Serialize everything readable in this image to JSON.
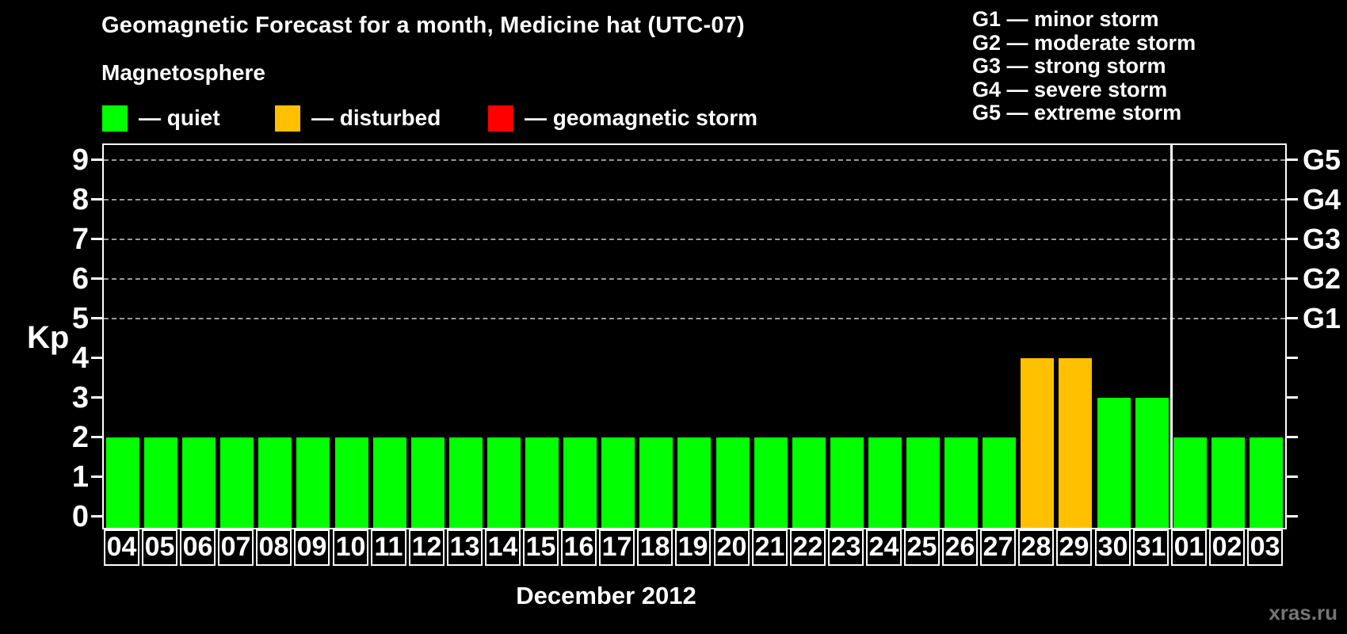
{
  "colors": {
    "quiet": "#00ff00",
    "disturbed": "#ffc000",
    "storm": "#ff0000",
    "grid": "#999999",
    "axis": "#ffffff",
    "background": "#000000",
    "watermark_text": "#757575"
  },
  "legend": {
    "heading": "Magnetosphere",
    "items": [
      {
        "label": "— quiet",
        "color": "#00ff00",
        "key": "quiet"
      },
      {
        "label": "— disturbed",
        "color": "#ffc000",
        "key": "disturbed"
      },
      {
        "label": "— geomagnetic storm",
        "color": "#ff0000",
        "key": "storm"
      }
    ]
  },
  "g_legend": {
    "items": [
      "G1 — minor storm",
      "G2 — moderate storm",
      "G3 — strong storm",
      "G4 — severe storm",
      "G5 — extreme storm"
    ]
  },
  "watermark": "xras.ru",
  "chart_data": {
    "type": "bar",
    "title": "Geomagnetic Forecast for a month, Medicine hat (UTC-07)",
    "subtitle": "Magnetosphere",
    "xlabel": "December 2012",
    "ylabel": "Kp",
    "ylim": [
      0,
      9
    ],
    "y_ticks": [
      "0",
      "1",
      "2",
      "3",
      "4",
      "5",
      "6",
      "7",
      "8",
      "9"
    ],
    "grid_kp": [
      5,
      6,
      7,
      8,
      9
    ],
    "right_axis_labels": [
      {
        "label": "G1",
        "kp": 5
      },
      {
        "label": "G2",
        "kp": 6
      },
      {
        "label": "G3",
        "kp": 7
      },
      {
        "label": "G4",
        "kp": 8
      },
      {
        "label": "G5",
        "kp": 9
      }
    ],
    "legend_position": "top-left",
    "grid": "dashed horizontal at G-levels only",
    "separator_before_index": 28,
    "categories": [
      "04",
      "05",
      "06",
      "07",
      "08",
      "09",
      "10",
      "11",
      "12",
      "13",
      "14",
      "15",
      "16",
      "17",
      "18",
      "19",
      "20",
      "21",
      "22",
      "23",
      "24",
      "25",
      "26",
      "27",
      "28",
      "29",
      "30",
      "31",
      "01",
      "02",
      "03"
    ],
    "values": [
      2,
      2,
      2,
      2,
      2,
      2,
      2,
      2,
      2,
      2,
      2,
      2,
      2,
      2,
      2,
      2,
      2,
      2,
      2,
      2,
      2,
      2,
      2,
      2,
      4,
      4,
      3,
      3,
      2,
      2,
      2
    ],
    "levels": [
      "quiet",
      "quiet",
      "quiet",
      "quiet",
      "quiet",
      "quiet",
      "quiet",
      "quiet",
      "quiet",
      "quiet",
      "quiet",
      "quiet",
      "quiet",
      "quiet",
      "quiet",
      "quiet",
      "quiet",
      "quiet",
      "quiet",
      "quiet",
      "quiet",
      "quiet",
      "quiet",
      "quiet",
      "disturbed",
      "disturbed",
      "quiet",
      "quiet",
      "quiet",
      "quiet",
      "quiet"
    ]
  }
}
